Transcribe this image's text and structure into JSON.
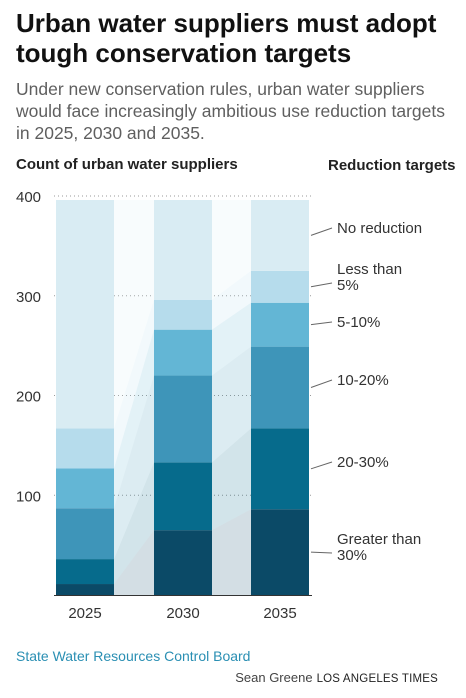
{
  "title": "Urban water suppliers must adopt tough conservation targets",
  "subtitle": "Under new conservation rules, urban water suppliers would face increasingly ambitious use reduction targets in 2025, 2030 and 2035.",
  "source": "State Water Resources Control Board",
  "byline": "Sean Greene",
  "publisher": "LOS ANGELES TIMES",
  "chart_data": {
    "type": "bar",
    "stacked": true,
    "ylabel": "Count of urban water suppliers",
    "legend_title": "Reduction targets",
    "ylim": [
      0,
      400
    ],
    "yticks": [
      0,
      100,
      200,
      300,
      400
    ],
    "ytick_labels": [
      "",
      "100",
      "200",
      "300",
      "400"
    ],
    "grid": true,
    "categories": [
      "2025",
      "2030",
      "2035"
    ],
    "series": [
      {
        "name": "Greater than 30%",
        "color": "#0b4a67",
        "values": [
          11,
          65,
          86
        ]
      },
      {
        "name": "20-30%",
        "color": "#066b8c",
        "values": [
          25,
          68,
          81
        ]
      },
      {
        "name": "10-20%",
        "color": "#3e95b9",
        "values": [
          51,
          87,
          82
        ]
      },
      {
        "name": "5-10%",
        "color": "#63b6d5",
        "values": [
          40,
          46,
          44
        ]
      },
      {
        "name": "Less than 5%",
        "color": "#b6dcec",
        "values": [
          40,
          30,
          32
        ]
      },
      {
        "name": "No reduction",
        "color": "#d9ecf3",
        "values": [
          229,
          100,
          71
        ]
      }
    ]
  }
}
